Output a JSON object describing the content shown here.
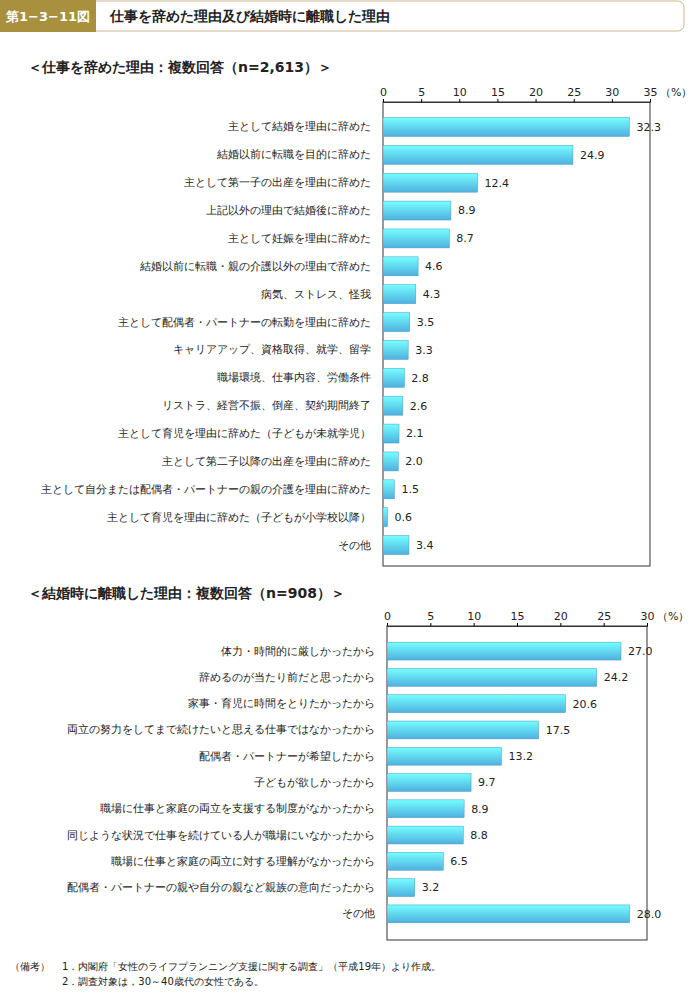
{
  "header": {
    "figure_label": "第1−3−11図",
    "title": "仕事を辞めた理由及び結婚時に離職した理由"
  },
  "chart_data": [
    {
      "type": "bar",
      "orientation": "horizontal",
      "title": "＜仕事を辞めた理由：複数回答（n=2,613）＞",
      "xlabel": "（%）",
      "categories": [
        "主として結婚を理由に辞めた",
        "結婚以前に転職を目的に辞めた",
        "主として第一子の出産を理由に辞めた",
        "上記以外の理由で結婚後に辞めた",
        "主として妊娠を理由に辞めた",
        "結婚以前に転職・親の介護以外の理由で辞めた",
        "病気、ストレス、怪我",
        "主として配偶者・パートナーの転勤を理由に辞めた",
        "キャリアアップ、資格取得、就学、留学",
        "職場環境、仕事内容、労働条件",
        "リストラ、経営不振、倒産、契約期間終了",
        "主として育児を理由に辞めた（子どもが未就学児）",
        "主として第二子以降の出産を理由に辞めた",
        "主として自分または配偶者・パートナーの親の介護を理由に辞めた",
        "主として育児を理由に辞めた（子どもが小学校以降）",
        "その他"
      ],
      "values": [
        32.3,
        24.9,
        12.4,
        8.9,
        8.7,
        4.6,
        4.3,
        3.5,
        3.3,
        2.8,
        2.6,
        2.1,
        2.0,
        1.5,
        0.6,
        3.4
      ],
      "value_labels": [
        "32.3",
        "24.9",
        "12.4",
        "8.9",
        "8.7",
        "4.6",
        "4.3",
        "3.5",
        "3.3",
        "2.8",
        "2.6",
        "2.1",
        "2.0",
        "1.5",
        "0.6",
        "3.4"
      ],
      "color": "#4fb0df",
      "xlim": [
        0,
        35
      ],
      "xticks": [
        0,
        5,
        10,
        15,
        20,
        25,
        30,
        35
      ],
      "grid": false,
      "data_labels": true
    },
    {
      "type": "bar",
      "orientation": "horizontal",
      "title": "＜結婚時に離職した理由：複数回答（n=908）＞",
      "xlabel": "（%）",
      "categories": [
        "体力・時間的に厳しかったから",
        "辞めるのが当たり前だと思ったから",
        "家事・育児に時間をとりたかったから",
        "両立の努力をしてまで続けたいと思える仕事ではなかったから",
        "配偶者・パートナーが希望したから",
        "子どもが欲しかったから",
        "職場に仕事と家庭の両立を支援する制度がなかったから",
        "同じような状況で仕事を続けている人が職場にいなかったから",
        "職場に仕事と家庭の両立に対する理解がなかったから",
        "配偶者・パートナーの親や自分の親など親族の意向だったから",
        "その他"
      ],
      "values": [
        27.0,
        24.2,
        20.6,
        17.5,
        13.2,
        9.7,
        8.9,
        8.8,
        6.5,
        3.2,
        28.0
      ],
      "value_labels": [
        "27.0",
        "24.2",
        "20.6",
        "17.5",
        "13.2",
        "9.7",
        "8.9",
        "8.8",
        "6.5",
        "3.2",
        "28.0"
      ],
      "color": "#4fb0df",
      "xlim": [
        0,
        30
      ],
      "xticks": [
        0,
        5,
        10,
        15,
        20,
        25,
        30
      ],
      "grid": false,
      "data_labels": true
    }
  ],
  "notes_label": "（備考）",
  "notes": [
    "1．内閣府「女性のライフプランニング支援に関する調査」（平成19年）より作成。",
    "2．調査対象は，30～40歳代の女性である。"
  ]
}
